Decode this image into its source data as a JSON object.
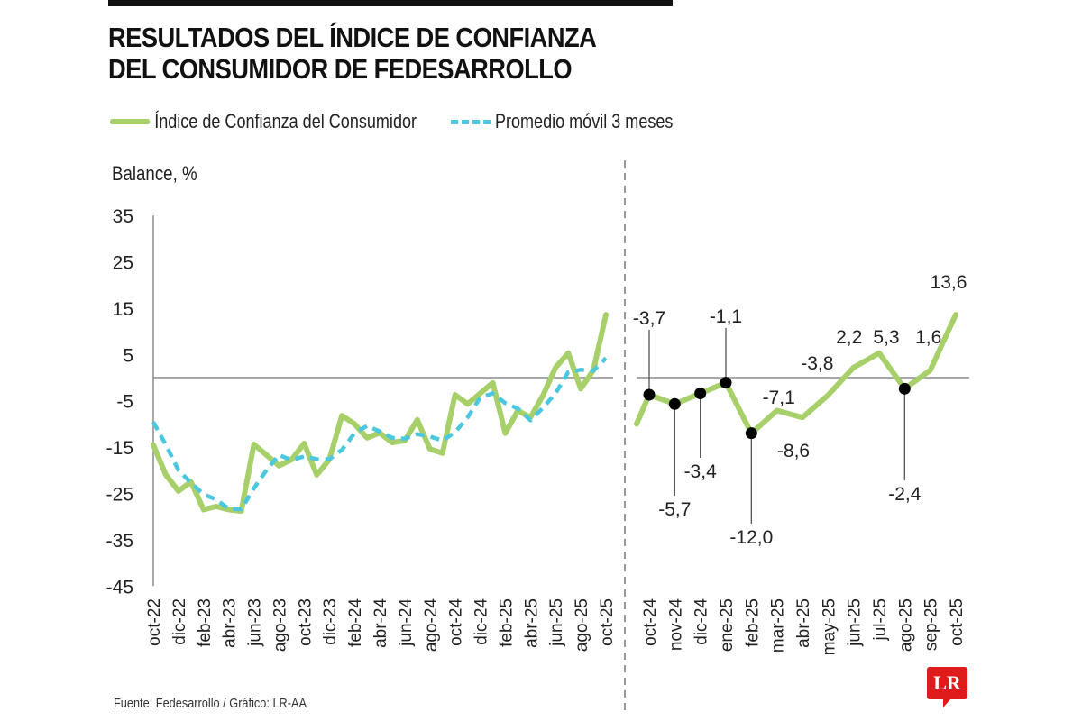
{
  "title_line1": "RESULTADOS DEL ÍNDICE DE CONFIANZA",
  "title_line2": "DEL CONSUMIDOR DE FEDESARROLLO",
  "legend": {
    "series1": "Índice de Confianza del Consumidor",
    "series2": "Promedio móvil 3 meses"
  },
  "source": "Fuente: Fedesarrollo / Gráfico: LR-AA",
  "logo": "LR",
  "colors": {
    "index": "#a8d06a",
    "moving_avg": "#4cc7e0",
    "axis": "#8c8c8c",
    "marker": "#000000",
    "logo": "#e01b1b"
  },
  "chart_data": [
    {
      "type": "line",
      "title": "RESULTADOS DEL ÍNDICE DE CONFIANZA DEL CONSUMIDOR DE FEDESARROLLO",
      "ylabel": "Balance, %",
      "xlabel": "",
      "ylim": [
        -45,
        35
      ],
      "yticks": [
        35,
        25,
        15,
        5,
        -5,
        -15,
        -25,
        -35,
        -45
      ],
      "x": [
        "oct-22",
        "nov-22",
        "dic-22",
        "ene-23",
        "feb-23",
        "mar-23",
        "abr-23",
        "may-23",
        "jun-23",
        "jul-23",
        "ago-23",
        "sep-23",
        "oct-23",
        "nov-23",
        "dic-23",
        "ene-24",
        "feb-24",
        "mar-24",
        "abr-24",
        "may-24",
        "jun-24",
        "jul-24",
        "ago-24",
        "sep-24",
        "oct-24",
        "nov-24",
        "dic-24",
        "ene-25",
        "feb-25",
        "mar-25",
        "abr-25",
        "may-25",
        "jun-25",
        "jul-25",
        "ago-25",
        "sep-25",
        "oct-25"
      ],
      "xtick_labels": [
        "oct-22",
        "dic-22",
        "feb-23",
        "abr-23",
        "jun-23",
        "ago-23",
        "oct-23",
        "dic-23",
        "feb-24",
        "abr-24",
        "jun-24",
        "ago-24",
        "oct-24",
        "dic-24",
        "feb-25",
        "abr-25",
        "jun-25",
        "ago-25",
        "oct-25"
      ],
      "series": [
        {
          "name": "Índice de Confianza del Consumidor",
          "style": "solid",
          "values": [
            -14.5,
            -21.0,
            -24.5,
            -22.5,
            -28.5,
            -27.8,
            -28.5,
            -28.8,
            -14.4,
            -16.7,
            -19.0,
            -17.7,
            -14.2,
            -21.0,
            -17.7,
            -8.2,
            -10.0,
            -13.0,
            -11.9,
            -14.0,
            -13.6,
            -9.1,
            -15.4,
            -16.3,
            -3.7,
            -5.7,
            -3.4,
            -1.1,
            -12.0,
            -7.1,
            -8.6,
            -3.8,
            2.2,
            5.3,
            -2.4,
            1.6,
            13.6
          ]
        },
        {
          "name": "Promedio móvil 3 meses",
          "style": "dashed",
          "values": [
            -9.6,
            -14.5,
            -20.0,
            -22.7,
            -25.2,
            -26.3,
            -28.3,
            -28.4,
            -23.9,
            -20.0,
            -16.7,
            -17.8,
            -17.0,
            -17.6,
            -17.6,
            -15.6,
            -12.0,
            -10.4,
            -11.6,
            -13.0,
            -13.2,
            -12.2,
            -12.7,
            -13.6,
            -11.8,
            -8.6,
            -4.3,
            -3.4,
            -5.5,
            -6.7,
            -9.2,
            -6.5,
            -3.4,
            1.2,
            1.7,
            1.5,
            4.2
          ]
        }
      ],
      "grid": false,
      "zero_line": true,
      "legend_position": "top-left"
    },
    {
      "type": "line",
      "title": "",
      "ylabel": "",
      "ylim": [
        -45,
        35
      ],
      "x": [
        "oct-24",
        "nov-24",
        "dic-24",
        "ene-25",
        "feb-25",
        "mar-25",
        "abr-25",
        "may-25",
        "jun-25",
        "jul-25",
        "ago-25",
        "sep-25",
        "oct-25"
      ],
      "series": [
        {
          "name": "Índice de Confianza del Consumidor",
          "values": [
            -3.7,
            -5.7,
            -3.4,
            -1.1,
            -12.0,
            -7.1,
            -8.6,
            -3.8,
            2.2,
            5.3,
            -2.4,
            1.6,
            13.6
          ],
          "lead_in_value": -10.0
        }
      ],
      "data_labels": [
        "-3,7",
        "-5,7",
        "-3,4",
        "-1,1",
        "-12,0",
        "-7,1",
        "-8,6",
        "-3,8",
        "2,2",
        "5,3",
        "-2,4",
        "1,6",
        "13,6"
      ],
      "markers_on": [
        "oct-24",
        "nov-24",
        "dic-24",
        "ene-25",
        "feb-25",
        "ago-25"
      ],
      "zero_line": true
    }
  ]
}
